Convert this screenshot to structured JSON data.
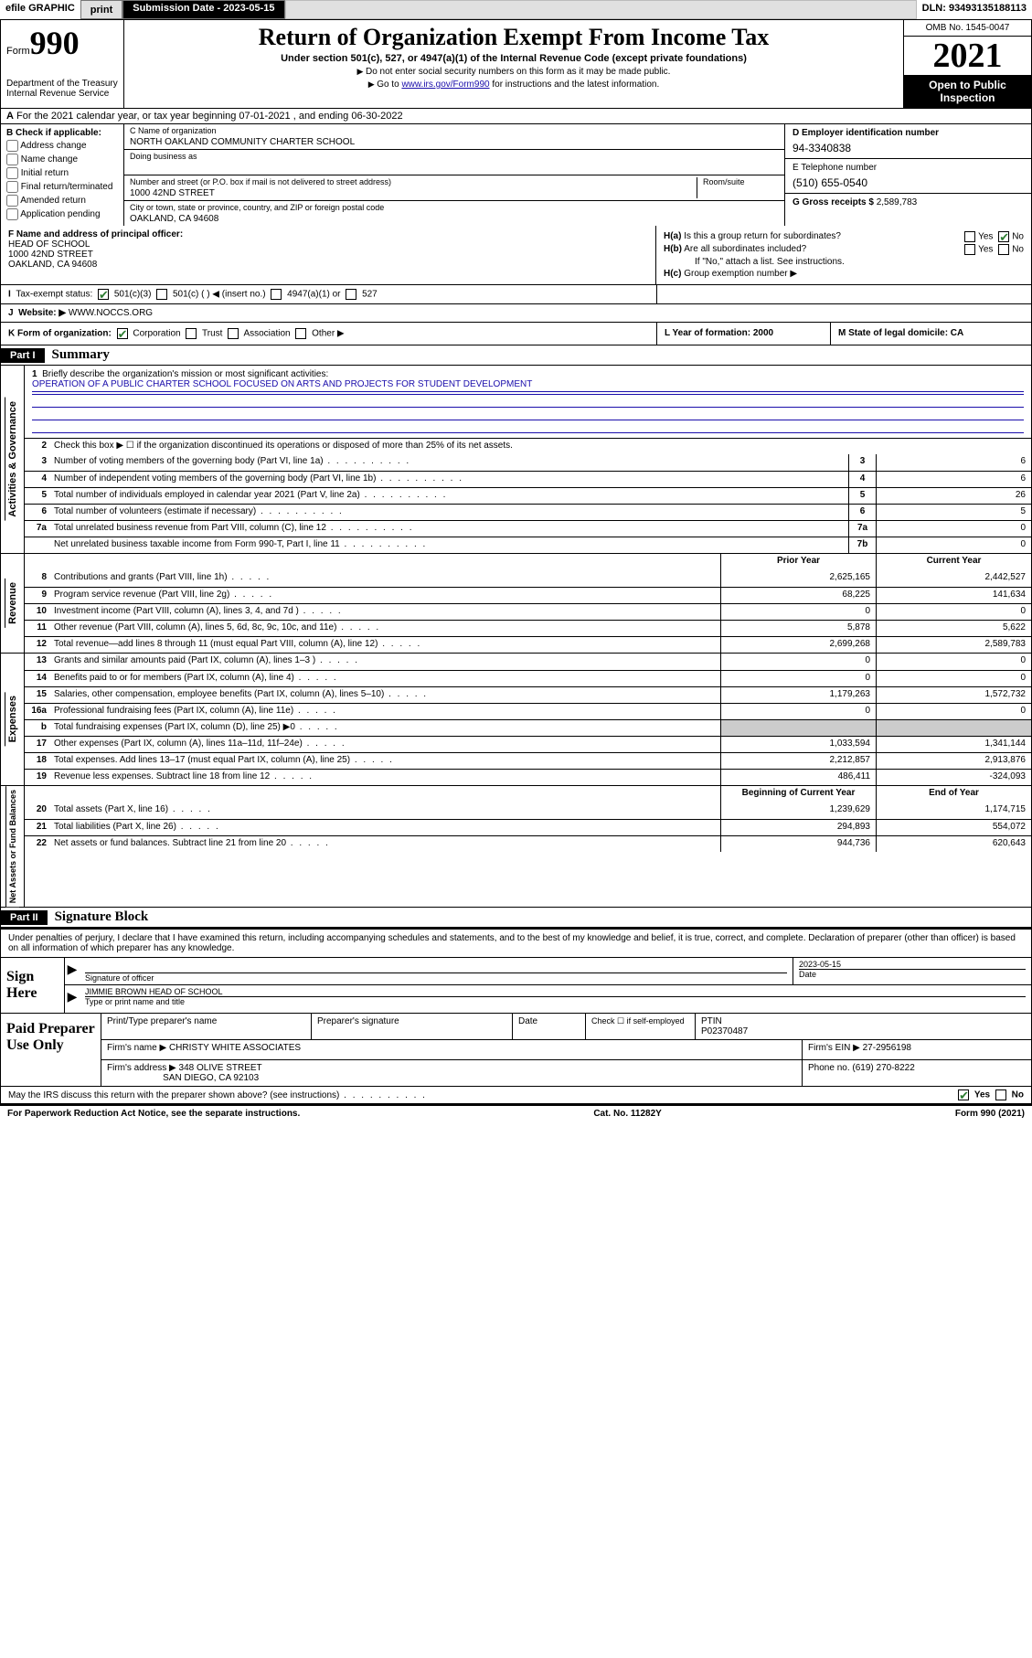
{
  "topbar": {
    "efile": "efile GRAPHIC",
    "print": "print",
    "subdate_lbl": "Submission Date - 2023-05-15",
    "dln": "DLN: 93493135188113"
  },
  "header": {
    "form_prefix": "Form",
    "form_no": "990",
    "dept": "Department of the Treasury\nInternal Revenue Service",
    "title": "Return of Organization Exempt From Income Tax",
    "sub": "Under section 501(c), 527, or 4947(a)(1) of the Internal Revenue Code (except private foundations)",
    "line1": "Do not enter social security numbers on this form as it may be made public.",
    "line2_pre": "Go to ",
    "line2_link": "www.irs.gov/Form990",
    "line2_post": " for instructions and the latest information.",
    "omb": "OMB No. 1545-0047",
    "year": "2021",
    "open": "Open to Public Inspection"
  },
  "rowA": "For the 2021 calendar year, or tax year beginning 07-01-2021   , and ending 06-30-2022",
  "sectionB": {
    "title": "B Check if applicable:",
    "opts": [
      "Address change",
      "Name change",
      "Initial return",
      "Final return/terminated",
      "Amended return",
      "Application pending"
    ]
  },
  "sectionC": {
    "name_lbl": "C Name of organization",
    "name": "NORTH OAKLAND COMMUNITY CHARTER SCHOOL",
    "dba_lbl": "Doing business as",
    "addr_lbl": "Number and street (or P.O. box if mail is not delivered to street address)",
    "room_lbl": "Room/suite",
    "addr": "1000 42ND STREET",
    "city_lbl": "City or town, state or province, country, and ZIP or foreign postal code",
    "city": "OAKLAND, CA  94608"
  },
  "sectionD": {
    "ein_lbl": "D Employer identification number",
    "ein": "94-3340838",
    "tel_lbl": "E Telephone number",
    "tel": "(510) 655-0540",
    "gross_lbl": "G Gross receipts $",
    "gross": "2,589,783"
  },
  "sectionF": {
    "lbl": "F Name and address of principal officer:",
    "line1": "HEAD OF SCHOOL",
    "line2": "1000 42ND STREET",
    "line3": "OAKLAND, CA  94608"
  },
  "sectionH": {
    "ha": "Is this a group return for subordinates?",
    "hb": "Are all subordinates included?",
    "ifno": "If \"No,\" attach a list. See instructions.",
    "hc": "Group exemption number ▶"
  },
  "sectionI": {
    "lbl": "Tax-exempt status:",
    "o1": "501(c)(3)",
    "o2": "501(c) (   ) ◀ (insert no.)",
    "o3": "4947(a)(1) or",
    "o4": "527"
  },
  "sectionJ": {
    "lbl": "Website: ▶",
    "val": "WWW.NOCCS.ORG"
  },
  "sectionK": {
    "lbl": "K Form of organization:",
    "o1": "Corporation",
    "o2": "Trust",
    "o3": "Association",
    "o4": "Other ▶"
  },
  "sectionL": {
    "lbl": "L Year of formation: 2000"
  },
  "sectionM": {
    "lbl": "M State of legal domicile: CA"
  },
  "part1": {
    "hdr": "Part I",
    "title": "Summary",
    "q1_lbl": "Briefly describe the organization's mission or most significant activities:",
    "q1_val": "OPERATION OF A PUBLIC CHARTER SCHOOL FOCUSED ON ARTS AND PROJECTS FOR STUDENT DEVELOPMENT",
    "q2": "Check this box ▶ ☐ if the organization discontinued its operations or disposed of more than 25% of its net assets.",
    "gov": [
      {
        "n": "3",
        "t": "Number of voting members of the governing body (Part VI, line 1a)",
        "b": "3",
        "v": "6"
      },
      {
        "n": "4",
        "t": "Number of independent voting members of the governing body (Part VI, line 1b)",
        "b": "4",
        "v": "6"
      },
      {
        "n": "5",
        "t": "Total number of individuals employed in calendar year 2021 (Part V, line 2a)",
        "b": "5",
        "v": "26"
      },
      {
        "n": "6",
        "t": "Total number of volunteers (estimate if necessary)",
        "b": "6",
        "v": "5"
      },
      {
        "n": "7a",
        "t": "Total unrelated business revenue from Part VIII, column (C), line 12",
        "b": "7a",
        "v": "0"
      },
      {
        "n": "",
        "t": "Net unrelated business taxable income from Form 990-T, Part I, line 11",
        "b": "7b",
        "v": "0"
      }
    ],
    "col_prior": "Prior Year",
    "col_curr": "Current Year",
    "rev": [
      {
        "n": "8",
        "t": "Contributions and grants (Part VIII, line 1h)",
        "p": "2,625,165",
        "c": "2,442,527"
      },
      {
        "n": "9",
        "t": "Program service revenue (Part VIII, line 2g)",
        "p": "68,225",
        "c": "141,634"
      },
      {
        "n": "10",
        "t": "Investment income (Part VIII, column (A), lines 3, 4, and 7d )",
        "p": "0",
        "c": "0"
      },
      {
        "n": "11",
        "t": "Other revenue (Part VIII, column (A), lines 5, 6d, 8c, 9c, 10c, and 11e)",
        "p": "5,878",
        "c": "5,622"
      },
      {
        "n": "12",
        "t": "Total revenue—add lines 8 through 11 (must equal Part VIII, column (A), line 12)",
        "p": "2,699,268",
        "c": "2,589,783"
      }
    ],
    "exp": [
      {
        "n": "13",
        "t": "Grants and similar amounts paid (Part IX, column (A), lines 1–3 )",
        "p": "0",
        "c": "0"
      },
      {
        "n": "14",
        "t": "Benefits paid to or for members (Part IX, column (A), line 4)",
        "p": "0",
        "c": "0"
      },
      {
        "n": "15",
        "t": "Salaries, other compensation, employee benefits (Part IX, column (A), lines 5–10)",
        "p": "1,179,263",
        "c": "1,572,732"
      },
      {
        "n": "16a",
        "t": "Professional fundraising fees (Part IX, column (A), line 11e)",
        "p": "0",
        "c": "0"
      },
      {
        "n": "b",
        "t": "Total fundraising expenses (Part IX, column (D), line 25) ▶0",
        "p": "",
        "c": "",
        "grey": true
      },
      {
        "n": "17",
        "t": "Other expenses (Part IX, column (A), lines 11a–11d, 11f–24e)",
        "p": "1,033,594",
        "c": "1,341,144"
      },
      {
        "n": "18",
        "t": "Total expenses. Add lines 13–17 (must equal Part IX, column (A), line 25)",
        "p": "2,212,857",
        "c": "2,913,876"
      },
      {
        "n": "19",
        "t": "Revenue less expenses. Subtract line 18 from line 12",
        "p": "486,411",
        "c": "-324,093"
      }
    ],
    "col_beg": "Beginning of Current Year",
    "col_end": "End of Year",
    "net": [
      {
        "n": "20",
        "t": "Total assets (Part X, line 16)",
        "p": "1,239,629",
        "c": "1,174,715"
      },
      {
        "n": "21",
        "t": "Total liabilities (Part X, line 26)",
        "p": "294,893",
        "c": "554,072"
      },
      {
        "n": "22",
        "t": "Net assets or fund balances. Subtract line 21 from line 20",
        "p": "944,736",
        "c": "620,643"
      }
    ],
    "side_gov": "Activities & Governance",
    "side_rev": "Revenue",
    "side_exp": "Expenses",
    "side_net": "Net Assets or Fund Balances"
  },
  "part2": {
    "hdr": "Part II",
    "title": "Signature Block",
    "decl": "Under penalties of perjury, I declare that I have examined this return, including accompanying schedules and statements, and to the best of my knowledge and belief, it is true, correct, and complete. Declaration of preparer (other than officer) is based on all information of which preparer has any knowledge.",
    "sign_here": "Sign Here",
    "sig_lbl": "Signature of officer",
    "date_lbl": "Date",
    "date": "2023-05-15",
    "name_lbl": "Type or print name and title",
    "name": "JIMMIE BROWN  HEAD OF SCHOOL",
    "paid": "Paid Preparer Use Only",
    "pp_name_lbl": "Print/Type preparer's name",
    "pp_sig_lbl": "Preparer's signature",
    "pp_date_lbl": "Date",
    "pp_check_lbl": "Check ☐ if self-employed",
    "ptin_lbl": "PTIN",
    "ptin": "P02370487",
    "firm_name_lbl": "Firm's name   ▶",
    "firm_name": "CHRISTY WHITE ASSOCIATES",
    "firm_ein_lbl": "Firm's EIN ▶",
    "firm_ein": "27-2956198",
    "firm_addr_lbl": "Firm's address ▶",
    "firm_addr1": "348 OLIVE STREET",
    "firm_addr2": "SAN DIEGO, CA  92103",
    "phone_lbl": "Phone no.",
    "phone": "(619) 270-8222",
    "discuss": "May the IRS discuss this return with the preparer shown above? (see instructions)"
  },
  "footer": {
    "left": "For Paperwork Reduction Act Notice, see the separate instructions.",
    "mid": "Cat. No. 11282Y",
    "right": "Form 990 (2021)"
  }
}
